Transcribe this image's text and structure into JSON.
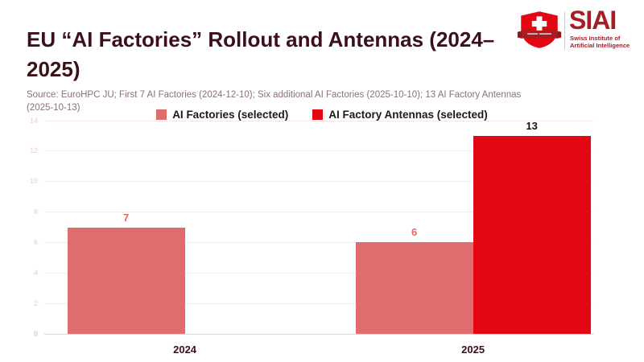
{
  "header": {
    "title": "EU “AI Factories” Rollout and Antennas (2024–2025)",
    "source": "Source: EuroHPC JU; First 7 AI Factories (2024-12-10); Six additional AI Factories (2025-10-10); 13 AI Factory Antennas (2025-10-13)"
  },
  "logo": {
    "abbr": "SIAI",
    "name_line1": "Swiss Institute of",
    "name_line2": "Artificial Intelligence",
    "shield_color": "#e30613",
    "banner_color": "#a81d22",
    "text_color": "#a41e23"
  },
  "colors": {
    "title_text": "#3b1018",
    "source_text": "#8a7175",
    "grid": "#fbe7e4",
    "baseline": "#d9d9d9",
    "y_tick": "#f8d7d2",
    "y_tick_zero": "#d4cfce",
    "x_label": "#3a1016",
    "legend_text": "#1a1a1a"
  },
  "chart_data": {
    "type": "bar",
    "title": "EU “AI Factories” Rollout and Antennas (2024–2025)",
    "categories": [
      "2024",
      "2025"
    ],
    "series": [
      {
        "name": "AI Factories (selected)",
        "color": "#e06d6d",
        "label_color": "#e06a6a",
        "values": [
          7,
          6
        ]
      },
      {
        "name": "AI Factory Antennas (selected)",
        "color": "#e30613",
        "label_color": "#111111",
        "values": [
          null,
          13
        ]
      }
    ],
    "ylim": [
      0,
      14
    ],
    "ytick_step": 2,
    "grid": true,
    "legend_position": "top-center",
    "group_centers_frac": [
      0.256,
      0.781
    ],
    "bar_width_frac": 0.214
  }
}
